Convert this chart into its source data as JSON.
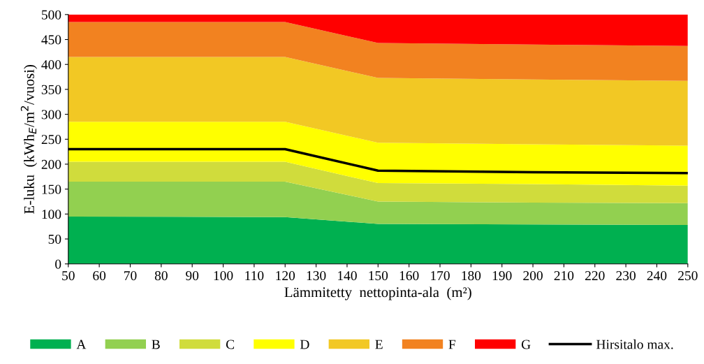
{
  "chart_data": {
    "type": "area",
    "stacked": true,
    "xlabel": "Lämmitetty  nettopinta-ala  (m²)",
    "ylabel": "E-luku  (kWh$_{E}$/m$^{2}$/vuosi)",
    "x": [
      50,
      120,
      150,
      200,
      250
    ],
    "series": [
      {
        "name": "A",
        "color": "#00b050",
        "values": [
          95,
          94,
          80,
          79,
          78
        ]
      },
      {
        "name": "B",
        "color": "#92d050",
        "values": [
          70,
          71,
          45,
          44,
          44
        ]
      },
      {
        "name": "C",
        "color": "#d0dc3c",
        "values": [
          40,
          40,
          37,
          37,
          35
        ]
      },
      {
        "name": "D",
        "color": "#ffff00",
        "values": [
          80,
          80,
          81,
          80,
          80
        ]
      },
      {
        "name": "E",
        "color": "#f2c824",
        "values": [
          130,
          130,
          130,
          130,
          130
        ]
      },
      {
        "name": "F",
        "color": "#f28220",
        "values": [
          70,
          70,
          70,
          70,
          70
        ]
      },
      {
        "name": "G",
        "color": "#ff0000",
        "values": [
          15,
          15,
          57,
          60,
          63
        ]
      },
      {
        "name": "Hirsitalo max.",
        "type": "line",
        "color": "#000000",
        "values": [
          230,
          230,
          187,
          184,
          182
        ]
      }
    ],
    "xlim": [
      50,
      250
    ],
    "xticks": [
      50,
      60,
      70,
      80,
      90,
      100,
      110,
      120,
      130,
      140,
      150,
      160,
      170,
      180,
      190,
      200,
      210,
      220,
      230,
      240,
      250
    ],
    "ylim": [
      0,
      500
    ],
    "yticks": [
      0,
      50,
      100,
      150,
      200,
      250,
      300,
      350,
      400,
      450,
      500
    ],
    "grid": false,
    "legend": "bottom"
  }
}
